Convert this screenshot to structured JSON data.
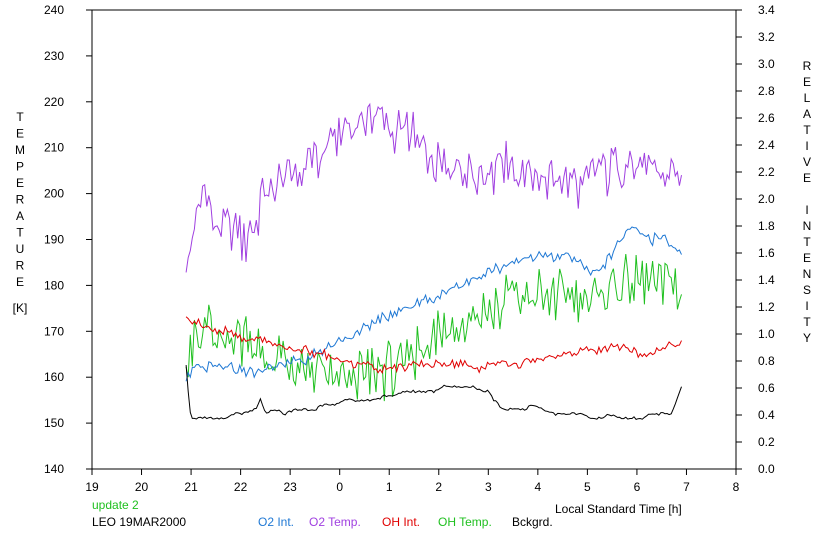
{
  "chart_data": {
    "type": "line",
    "xlabel": "Local Standard Time [h]",
    "ylabel_left_letters": [
      "T",
      "E",
      "M",
      "P",
      "E",
      "R",
      "A",
      "T",
      "U",
      "R",
      "E"
    ],
    "ylabel_left_unit": "[K]",
    "ylabel_right_letters": [
      "R",
      "E",
      "L",
      "A",
      "T",
      "I",
      "V",
      "E",
      "",
      "I",
      "N",
      "T",
      "E",
      "N",
      "S",
      "I",
      "T",
      "Y"
    ],
    "x_ticks": [
      19,
      20,
      21,
      22,
      23,
      24,
      25,
      26,
      27,
      28,
      29,
      30,
      31,
      32
    ],
    "x_tick_labels": [
      "19",
      "20",
      "21",
      "22",
      "23",
      "0",
      "1",
      "2",
      "3",
      "4",
      "5",
      "6",
      "7",
      "8"
    ],
    "xlim": [
      19,
      32
    ],
    "y_left_ticks": [
      "140",
      "150",
      "160",
      "170",
      "180",
      "190",
      "200",
      "210",
      "220",
      "230",
      "240"
    ],
    "ylim_left": [
      140,
      240
    ],
    "y_right_ticks": [
      "0.0",
      "0.2",
      "0.4",
      "0.6",
      "0.8",
      "1.0",
      "1.2",
      "1.4",
      "1.6",
      "1.8",
      "2.0",
      "2.2",
      "2.4",
      "2.6",
      "2.8",
      "3.0",
      "3.2",
      "3.4"
    ],
    "ylim_right": [
      0,
      3.4
    ],
    "grid": false,
    "update_text": "update 2",
    "station_text": "LEO 19MAR2000",
    "legend": [
      {
        "label": "O2 Int.",
        "color": "#1f78d4"
      },
      {
        "label": "O2 Temp.",
        "color": "#a040e0"
      },
      {
        "label": "OH Int.",
        "color": "#e00000"
      },
      {
        "label": "OH Temp.",
        "color": "#20c020"
      },
      {
        "label": "Bckgrd.",
        "color": "#000000"
      }
    ],
    "series": [
      {
        "name": "O2 Temp.",
        "axis": "left",
        "color": "#a040e0",
        "noise": 6.5,
        "x": [
          20.9,
          21.1,
          21.3,
          21.5,
          21.7,
          21.9,
          22.1,
          22.3,
          22.5,
          22.7,
          22.9,
          23.1,
          23.3,
          23.5,
          23.7,
          23.9,
          24.1,
          24.3,
          24.5,
          24.7,
          24.9,
          25.1,
          25.3,
          25.5,
          25.7,
          25.9,
          26.1,
          26.3,
          26.5,
          26.7,
          26.9,
          27.1,
          27.3,
          27.5,
          27.7,
          27.9,
          28.1,
          28.3,
          28.5,
          28.7,
          28.9,
          29.1,
          29.3,
          29.5,
          29.7,
          29.9,
          30.1,
          30.3,
          30.5,
          30.7,
          30.9
        ],
        "y": [
          184,
          196,
          200,
          193,
          195,
          192,
          190,
          195,
          200,
          202,
          203,
          204,
          206,
          207,
          209,
          212,
          213,
          215,
          216,
          216,
          215,
          213,
          214,
          212,
          209,
          207,
          206,
          205,
          206,
          205,
          206,
          205,
          207,
          205,
          206,
          204,
          204,
          203,
          203,
          202,
          203,
          203,
          204,
          205,
          205,
          206,
          205,
          206,
          205,
          204,
          203
        ]
      },
      {
        "name": "OH Temp.",
        "axis": "left",
        "color": "#20c020",
        "noise": 8,
        "x": [
          20.9,
          21.1,
          21.3,
          21.5,
          21.7,
          21.9,
          22.1,
          22.3,
          22.5,
          22.7,
          22.9,
          23.1,
          23.3,
          23.5,
          23.7,
          23.9,
          24.1,
          24.3,
          24.5,
          24.7,
          24.9,
          25.1,
          25.3,
          25.5,
          25.7,
          25.9,
          26.1,
          26.3,
          26.5,
          26.7,
          26.9,
          27.1,
          27.3,
          27.5,
          27.7,
          27.9,
          28.1,
          28.3,
          28.5,
          28.7,
          28.9,
          29.1,
          29.3,
          29.5,
          29.7,
          29.9,
          30.1,
          30.3,
          30.5,
          30.7,
          30.9
        ],
        "y": [
          166,
          168,
          170,
          167,
          168,
          169,
          168,
          166,
          164,
          163,
          162,
          161,
          161,
          160,
          160,
          160,
          161,
          160,
          161,
          162,
          162,
          163,
          163,
          164,
          166,
          168,
          170,
          171,
          172,
          173,
          174,
          175,
          176,
          176,
          177,
          177,
          178,
          178,
          178,
          179,
          179,
          178,
          179,
          180,
          180,
          179,
          180,
          180,
          181,
          180,
          179
        ]
      },
      {
        "name": "O2 Int.",
        "axis": "left",
        "color": "#1f78d4",
        "noise": 1.5,
        "x": [
          20.9,
          21.1,
          21.3,
          21.5,
          21.7,
          21.9,
          22.1,
          22.3,
          22.5,
          22.7,
          22.9,
          23.1,
          23.3,
          23.5,
          23.7,
          23.9,
          24.1,
          24.3,
          24.5,
          24.7,
          24.9,
          25.1,
          25.3,
          25.5,
          25.7,
          25.9,
          26.1,
          26.3,
          26.5,
          26.7,
          26.9,
          27.1,
          27.3,
          27.5,
          27.7,
          27.9,
          28.1,
          28.3,
          28.5,
          28.7,
          28.9,
          29.1,
          29.3,
          29.5,
          29.7,
          29.9,
          30.1,
          30.3,
          30.5,
          30.7,
          30.9
        ],
        "y": [
          160,
          162,
          162,
          163,
          163,
          162,
          161,
          161,
          162,
          163,
          163,
          164,
          163,
          165,
          166,
          167,
          168,
          169,
          171,
          172,
          173,
          174,
          175,
          176,
          177,
          177,
          178,
          179,
          180,
          181,
          182,
          183,
          184,
          185,
          186,
          186,
          187,
          186,
          187,
          186,
          184,
          183,
          184,
          187,
          191,
          193,
          191,
          190,
          190,
          189,
          187
        ]
      },
      {
        "name": "OH Int.",
        "axis": "left",
        "color": "#e00000",
        "noise": 1.2,
        "x": [
          20.9,
          21.1,
          21.3,
          21.5,
          21.7,
          21.9,
          22.1,
          22.3,
          22.5,
          22.7,
          22.9,
          23.1,
          23.3,
          23.5,
          23.7,
          23.9,
          24.1,
          24.3,
          24.5,
          24.7,
          24.9,
          25.1,
          25.3,
          25.5,
          25.7,
          25.9,
          26.1,
          26.3,
          26.5,
          26.7,
          26.9,
          27.1,
          27.3,
          27.5,
          27.7,
          27.9,
          28.1,
          28.3,
          28.5,
          28.7,
          28.9,
          29.1,
          29.3,
          29.5,
          29.7,
          29.9,
          30.1,
          30.3,
          30.5,
          30.7,
          30.9
        ],
        "y": [
          173,
          172,
          171,
          170,
          170,
          169,
          168,
          168,
          168,
          167,
          167,
          166,
          166,
          165,
          165,
          164,
          164,
          163,
          163,
          162,
          162,
          162,
          162,
          163,
          163,
          163,
          163,
          163,
          163,
          162,
          162,
          163,
          163,
          163,
          163,
          164,
          164,
          164,
          165,
          165,
          166,
          166,
          166,
          167,
          167,
          166,
          165,
          165,
          166,
          167,
          167
        ]
      },
      {
        "name": "Bckgrd.",
        "axis": "left",
        "color": "#000000",
        "noise": 0.4,
        "x": [
          20.9,
          20.95,
          21.0,
          21.1,
          21.3,
          21.5,
          21.7,
          21.9,
          22.1,
          22.3,
          22.4,
          22.5,
          22.7,
          22.9,
          23.1,
          23.3,
          23.5,
          23.7,
          23.9,
          24.1,
          24.3,
          24.5,
          24.7,
          24.9,
          25.1,
          25.3,
          25.5,
          25.7,
          25.9,
          26.1,
          26.3,
          26.5,
          26.7,
          26.9,
          27.0,
          27.1,
          27.3,
          27.5,
          27.7,
          27.9,
          28.1,
          28.3,
          28.5,
          28.7,
          28.9,
          29.1,
          29.3,
          29.5,
          29.7,
          29.9,
          30.1,
          30.3,
          30.5,
          30.7,
          30.8,
          30.9
        ],
        "y": [
          163,
          156,
          151,
          151,
          151,
          151,
          151,
          152,
          152,
          153,
          155,
          152,
          153,
          152,
          153,
          153,
          153,
          154,
          154,
          155,
          155,
          155,
          155,
          156,
          156,
          157,
          157,
          157,
          157,
          158,
          158,
          158,
          158,
          157,
          157,
          155,
          153,
          153,
          153,
          154,
          153,
          152,
          152,
          152,
          152,
          151,
          151,
          152,
          151,
          151,
          151,
          152,
          152,
          152,
          155,
          158
        ]
      }
    ]
  }
}
